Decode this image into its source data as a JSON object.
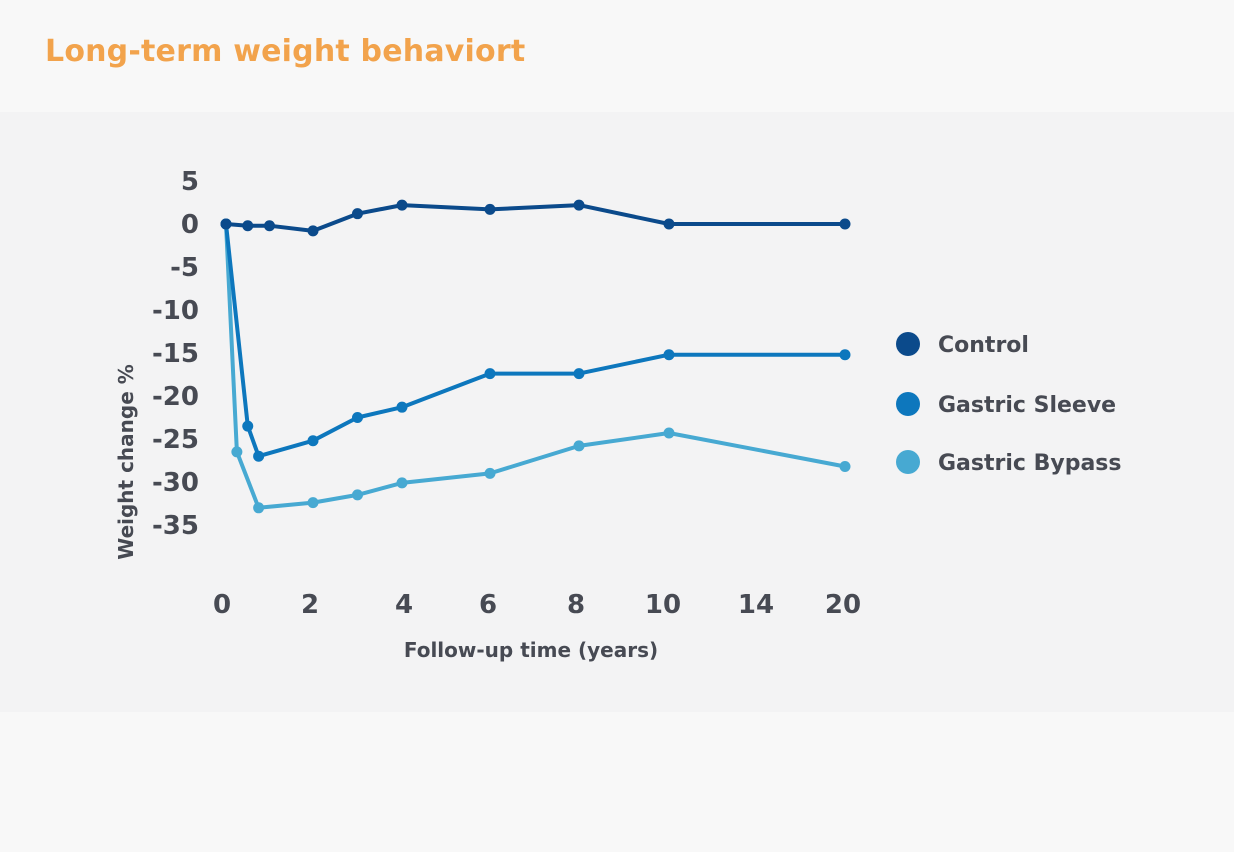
{
  "title": "Long-term weight behaviort",
  "colors": {
    "title": "#f2a34c",
    "axis_text": "#474a53",
    "panel_bg": "#f3f3f4"
  },
  "chart_data": {
    "type": "line",
    "title": "Long-term weight behaviort",
    "xlabel": "Follow-up time (years)",
    "ylabel": "Weight change %",
    "x_ticks": [
      "0",
      "2",
      "4",
      "6",
      "8",
      "10",
      "14",
      "20"
    ],
    "y_ticks": [
      5,
      0,
      -5,
      -10,
      -15,
      -20,
      -25,
      -30,
      -35
    ],
    "ylim": [
      -35,
      5
    ],
    "grid": false,
    "legend_position": "right",
    "series": [
      {
        "name": "Control",
        "color": "#0b4a8b",
        "x": [
          0,
          0.5,
          1,
          2,
          3,
          4,
          6,
          8,
          10,
          20
        ],
        "y": [
          0,
          -0.2,
          -0.2,
          -0.8,
          1.2,
          2.2,
          1.7,
          2.2,
          0,
          0
        ]
      },
      {
        "name": "Gastric Sleeve",
        "color": "#0d77bd",
        "x": [
          0,
          0.5,
          0.75,
          2,
          3,
          4,
          6,
          8,
          10,
          20
        ],
        "y": [
          0,
          -23.5,
          -27,
          -25.2,
          -22.5,
          -21.3,
          -17.4,
          -17.4,
          -15.2,
          -15.2
        ]
      },
      {
        "name": "Gastric Bypass",
        "color": "#47a9d2",
        "x": [
          0,
          0.25,
          0.75,
          2,
          3,
          4,
          6,
          8,
          10,
          20
        ],
        "y": [
          0,
          -26.5,
          -33,
          -32.4,
          -31.5,
          -30.1,
          -29,
          -25.8,
          -24.3,
          -28.2
        ]
      }
    ]
  }
}
